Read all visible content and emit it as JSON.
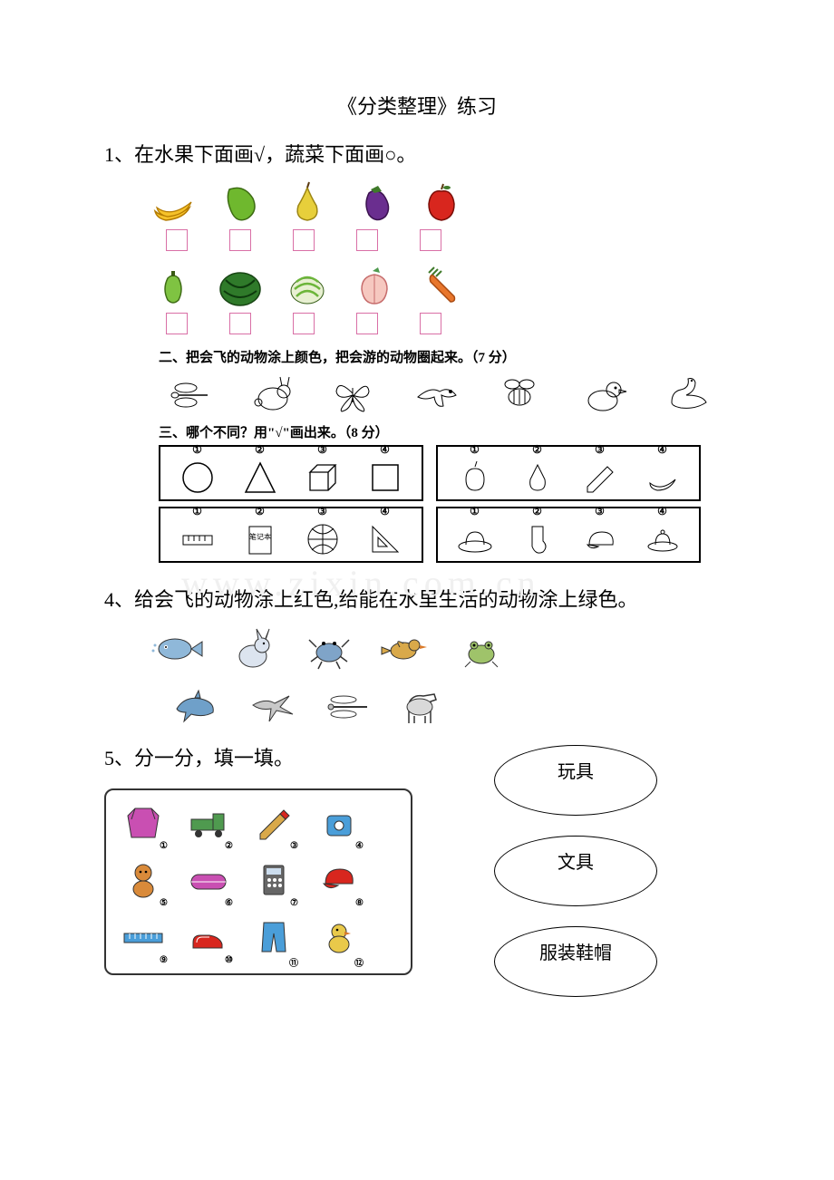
{
  "title": "《分类整理》练习",
  "q1": {
    "text": "1、在水果下面画√，蔬菜下面画○。",
    "row1": [
      {
        "name": "banana",
        "type": "fruit",
        "fill": "#f6c22a",
        "stroke": "#b47b00"
      },
      {
        "name": "cucumber",
        "type": "veg",
        "fill": "#6fb82e",
        "stroke": "#3c6b12"
      },
      {
        "name": "pear",
        "type": "fruit",
        "fill": "#e7cf3b",
        "stroke": "#9c8514"
      },
      {
        "name": "eggplant",
        "type": "veg",
        "fill": "#6a2e8f",
        "stroke": "#3b124f"
      },
      {
        "name": "apple",
        "type": "fruit",
        "fill": "#d8261e",
        "stroke": "#7a0d07"
      }
    ],
    "row2": [
      {
        "name": "pepper",
        "type": "veg",
        "fill": "#7fc342",
        "stroke": "#3f6d16"
      },
      {
        "name": "watermelon",
        "type": "fruit",
        "fill": "#2f7a2a",
        "stroke": "#184514"
      },
      {
        "name": "cabbage",
        "type": "veg",
        "fill": "#6cb53a",
        "stroke": "#335c14"
      },
      {
        "name": "peach",
        "type": "fruit",
        "fill": "#f6c8c0",
        "stroke": "#c76d6d"
      },
      {
        "name": "carrot",
        "type": "veg",
        "fill": "#e8762c",
        "stroke": "#a84a11"
      }
    ],
    "box_border": "#d96fa6"
  },
  "q2": {
    "label": "二、把会飞的动物涂上颜色，把会游的动物圈起来。（7 分）",
    "animals": [
      "dragonfly",
      "rabbit",
      "butterfly",
      "eagle",
      "bee",
      "duck-toy",
      "swan"
    ],
    "stroke": "#000000"
  },
  "q3": {
    "label": "三、哪个不同？用\"√\"画出来。（8 分）",
    "panels": [
      {
        "items": [
          "circle",
          "triangle",
          "cuboid",
          "square"
        ]
      },
      {
        "items": [
          "apple",
          "pear",
          "pencil",
          "banana"
        ]
      },
      {
        "items": [
          "ruler",
          "notebook",
          "basketball",
          "setsquare"
        ]
      },
      {
        "items": [
          "hat",
          "sock",
          "cap",
          "hat2"
        ]
      }
    ],
    "numbers": [
      "①",
      "②",
      "③",
      "④"
    ]
  },
  "q4": {
    "text": "4、给会飞的动物涂上红色,给能在水里生活的动物涂上绿色。",
    "row1": [
      {
        "name": "fish",
        "fill": "#8fb8d9"
      },
      {
        "name": "rabbit",
        "fill": "#dce4ef"
      },
      {
        "name": "crab",
        "fill": "#7fa4c8"
      },
      {
        "name": "bird",
        "fill": "#d9a94a"
      },
      {
        "name": "frog",
        "fill": "#9fc36a"
      }
    ],
    "row2": [
      {
        "name": "dolphin",
        "fill": "#6fa0c9"
      },
      {
        "name": "swallow",
        "fill": "#c8c8c8"
      },
      {
        "name": "dragonfly",
        "fill": "#bfbfbf"
      },
      {
        "name": "horse",
        "fill": "#d9d9d9"
      }
    ]
  },
  "q5": {
    "text": "5、分一分，填一填。",
    "items": [
      {
        "n": "①",
        "name": "jacket",
        "fill": "#c94fb2"
      },
      {
        "n": "②",
        "name": "truck",
        "fill": "#4f9a4f"
      },
      {
        "n": "③",
        "name": "pencil-sharpener",
        "fill": "#d9a94a"
      },
      {
        "n": "④",
        "name": "sharpener",
        "fill": "#4a9ed9"
      },
      {
        "n": "⑤",
        "name": "doll",
        "fill": "#d98a3a"
      },
      {
        "n": "⑥",
        "name": "pencilcase",
        "fill": "#c94fb2"
      },
      {
        "n": "⑦",
        "name": "calculator",
        "fill": "#666666"
      },
      {
        "n": "⑧",
        "name": "cap",
        "fill": "#d8261e"
      },
      {
        "n": "⑨",
        "name": "ruler",
        "fill": "#4a9ed9"
      },
      {
        "n": "⑩",
        "name": "shoes",
        "fill": "#d8261e"
      },
      {
        "n": "⑪",
        "name": "pants",
        "fill": "#4a9ed9"
      },
      {
        "n": "⑫",
        "name": "chick",
        "fill": "#e9c94a"
      }
    ],
    "categories": [
      "玩具",
      "文具",
      "服装鞋帽"
    ]
  },
  "colors": {
    "text": "#000000",
    "bg": "#ffffff"
  }
}
